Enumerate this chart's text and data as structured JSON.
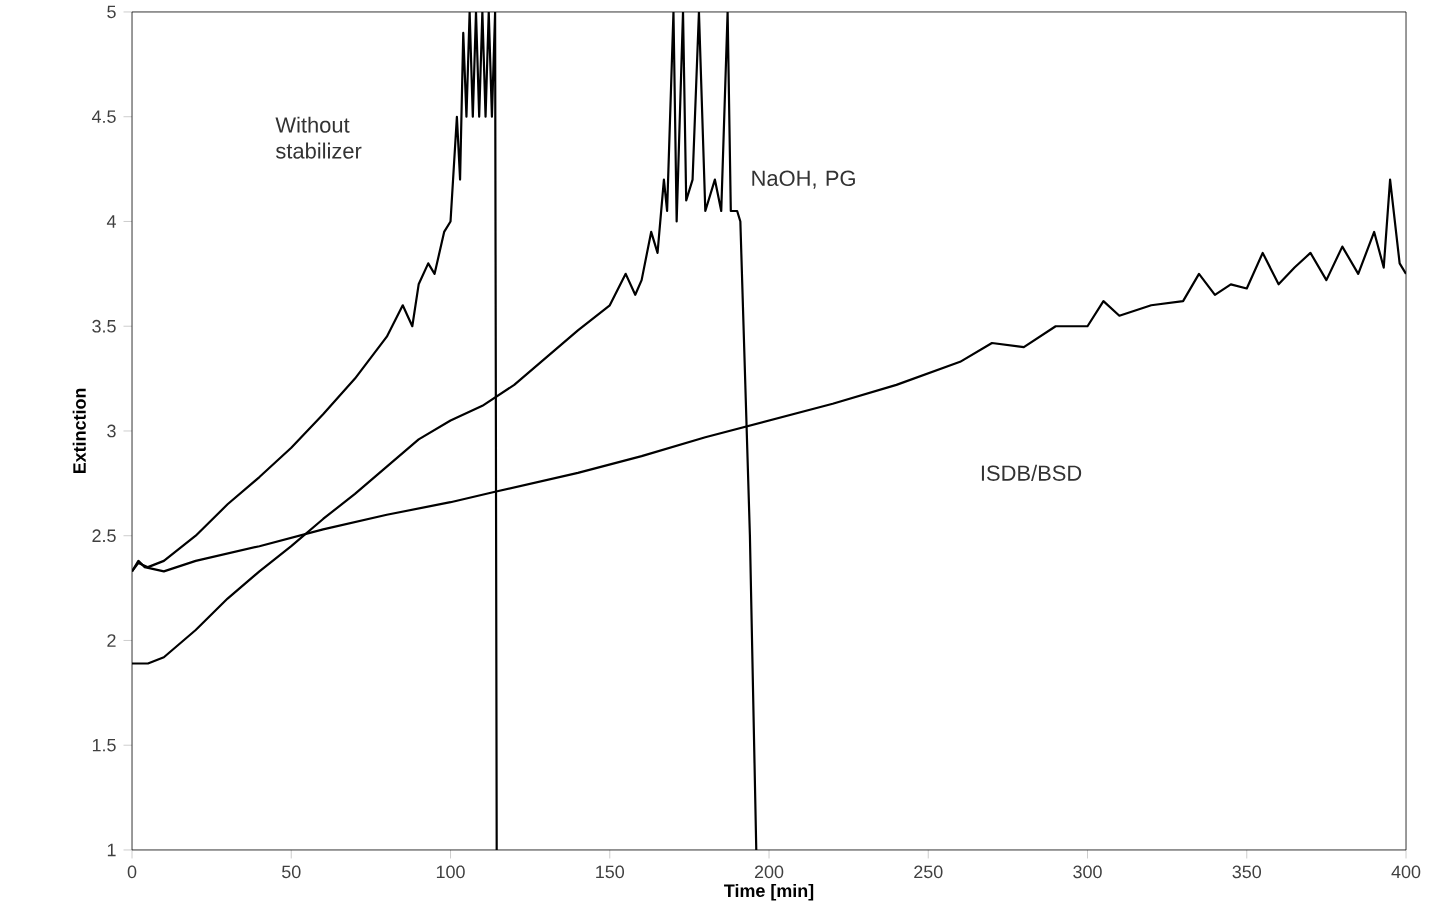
{
  "chart_data": {
    "type": "line",
    "xlabel": "Time [min]",
    "ylabel": "Extinction",
    "xlim": [
      0,
      400
    ],
    "xticks": [
      0,
      50,
      100,
      150,
      200,
      250,
      300,
      350,
      400
    ],
    "ylim": [
      1,
      5
    ],
    "yticks": [
      1,
      1.5,
      2,
      2.5,
      3,
      3.5,
      4,
      4.5,
      5
    ],
    "grid": false,
    "marker": "none",
    "line_style": "solid",
    "series": [
      {
        "color": "#000000",
        "x": [
          0,
          2,
          5,
          10,
          20,
          30,
          40,
          50,
          60,
          70,
          80,
          85,
          88,
          90,
          93,
          95,
          98,
          100,
          102,
          103,
          104,
          105,
          106,
          107,
          108,
          109,
          110,
          111,
          112,
          113,
          114,
          114.5
        ],
        "values": [
          2.33,
          2.37,
          2.35,
          2.38,
          2.5,
          2.65,
          2.78,
          2.92,
          3.08,
          3.25,
          3.45,
          3.6,
          3.5,
          3.7,
          3.8,
          3.75,
          3.95,
          4.0,
          4.5,
          4.2,
          4.9,
          4.5,
          5,
          4.5,
          5,
          4.5,
          5,
          4.5,
          5,
          4.5,
          5,
          1
        ]
      },
      {
        "color": "#000000",
        "x": [
          0,
          5,
          10,
          20,
          30,
          40,
          50,
          60,
          70,
          80,
          90,
          100,
          110,
          120,
          130,
          140,
          150,
          155,
          158,
          160,
          163,
          165,
          167,
          168,
          170,
          171,
          173,
          174,
          176,
          178,
          180,
          183,
          185,
          187,
          188,
          190,
          191,
          194,
          196
        ],
        "values": [
          1.89,
          1.89,
          1.92,
          2.05,
          2.2,
          2.33,
          2.45,
          2.58,
          2.7,
          2.83,
          2.96,
          3.05,
          3.12,
          3.22,
          3.35,
          3.48,
          3.6,
          3.75,
          3.65,
          3.72,
          3.95,
          3.85,
          4.2,
          4.05,
          5,
          4.0,
          5,
          4.1,
          4.2,
          5,
          4.05,
          4.2,
          4.05,
          5,
          4.05,
          4.05,
          4.0,
          2.5,
          1
        ]
      },
      {
        "color": "#000000",
        "x": [
          0,
          2,
          4,
          10,
          20,
          40,
          60,
          80,
          100,
          114,
          140,
          160,
          180,
          200,
          220,
          240,
          260,
          270,
          280,
          290,
          300,
          305,
          310,
          320,
          330,
          335,
          340,
          345,
          350,
          355,
          360,
          365,
          370,
          375,
          380,
          385,
          390,
          393,
          395,
          398,
          400
        ],
        "values": [
          2.33,
          2.38,
          2.35,
          2.33,
          2.38,
          2.45,
          2.53,
          2.6,
          2.66,
          2.71,
          2.8,
          2.88,
          2.97,
          3.05,
          3.13,
          3.22,
          3.33,
          3.42,
          3.4,
          3.5,
          3.5,
          3.62,
          3.55,
          3.6,
          3.62,
          3.75,
          3.65,
          3.7,
          3.68,
          3.85,
          3.7,
          3.78,
          3.85,
          3.72,
          3.88,
          3.75,
          3.95,
          3.78,
          4.2,
          3.8,
          3.75
        ]
      }
    ],
    "annotations": [
      "Without stabilizer",
      "NaOH, PG",
      "ISDB/BSD"
    ]
  }
}
